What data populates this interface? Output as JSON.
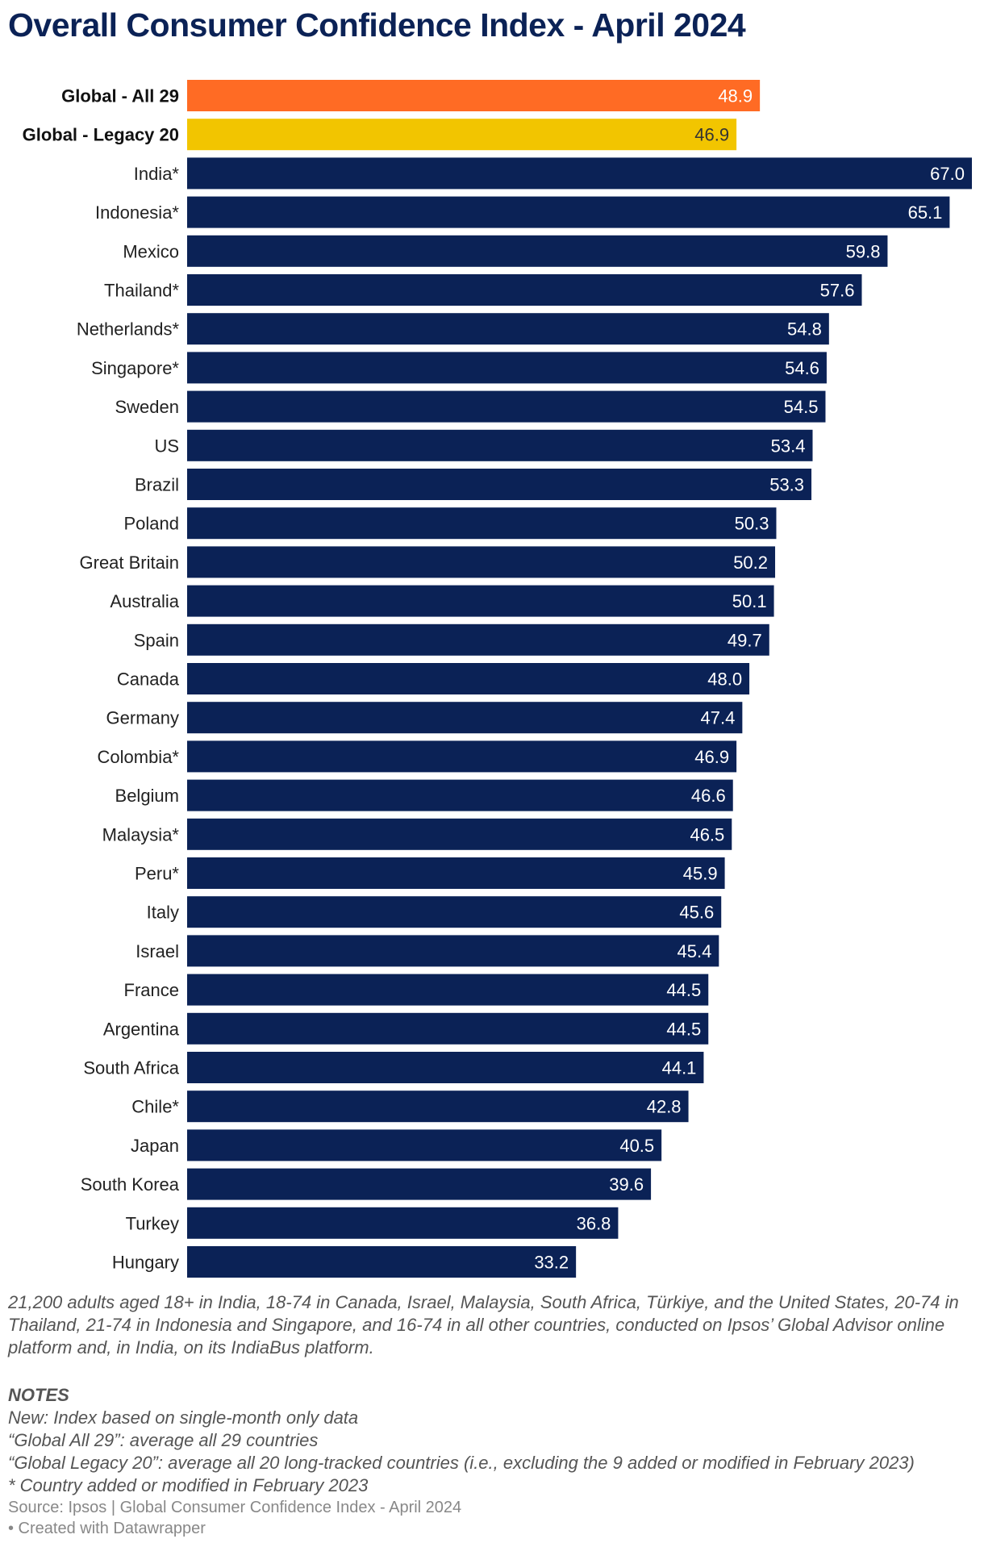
{
  "title": "Overall Consumer Confidence Index - April 2024",
  "chart_data": {
    "type": "bar",
    "orientation": "horizontal",
    "title": "Overall Consumer Confidence Index - April 2024",
    "categories": [
      "Global - All 29",
      "Global - Legacy 20",
      "India*",
      "Indonesia*",
      "Mexico",
      "Thailand*",
      "Netherlands*",
      "Singapore*",
      "Sweden",
      "US",
      "Brazil",
      "Poland",
      "Great Britain",
      "Australia",
      "Spain",
      "Canada",
      "Germany",
      "Colombia*",
      "Belgium",
      "Malaysia*",
      "Peru*",
      "Italy",
      "Israel",
      "France",
      "Argentina",
      "South Africa",
      "Chile*",
      "Japan",
      "South Korea",
      "Turkey",
      "Hungary"
    ],
    "values": [
      48.9,
      46.9,
      67.0,
      65.1,
      59.8,
      57.6,
      54.8,
      54.6,
      54.5,
      53.4,
      53.3,
      50.3,
      50.2,
      50.1,
      49.7,
      48.0,
      47.4,
      46.9,
      46.6,
      46.5,
      45.9,
      45.6,
      45.4,
      44.5,
      44.5,
      44.1,
      42.8,
      40.5,
      39.6,
      36.8,
      33.2
    ],
    "value_labels": [
      "48.9",
      "46.9",
      "67.0",
      "65.1",
      "59.8",
      "57.6",
      "54.8",
      "54.6",
      "54.5",
      "53.4",
      "53.3",
      "50.3",
      "50.2",
      "50.1",
      "49.7",
      "48.0",
      "47.4",
      "46.9",
      "46.6",
      "46.5",
      "45.9",
      "45.6",
      "45.4",
      "44.5",
      "44.5",
      "44.1",
      "42.8",
      "40.5",
      "39.6",
      "36.8",
      "33.2"
    ],
    "highlight_bold": [
      true,
      true,
      false,
      false,
      false,
      false,
      false,
      false,
      false,
      false,
      false,
      false,
      false,
      false,
      false,
      false,
      false,
      false,
      false,
      false,
      false,
      false,
      false,
      false,
      false,
      false,
      false,
      false,
      false,
      false,
      false
    ],
    "bar_colors": [
      "#ff6b24",
      "#f2c500",
      "#0b2256",
      "#0b2256",
      "#0b2256",
      "#0b2256",
      "#0b2256",
      "#0b2256",
      "#0b2256",
      "#0b2256",
      "#0b2256",
      "#0b2256",
      "#0b2256",
      "#0b2256",
      "#0b2256",
      "#0b2256",
      "#0b2256",
      "#0b2256",
      "#0b2256",
      "#0b2256",
      "#0b2256",
      "#0b2256",
      "#0b2256",
      "#0b2256",
      "#0b2256",
      "#0b2256",
      "#0b2256",
      "#0b2256",
      "#0b2256",
      "#0b2256",
      "#0b2256"
    ],
    "label_colors": [
      "#ffffff",
      "#333333",
      "#ffffff",
      "#ffffff",
      "#ffffff",
      "#ffffff",
      "#ffffff",
      "#ffffff",
      "#ffffff",
      "#ffffff",
      "#ffffff",
      "#ffffff",
      "#ffffff",
      "#ffffff",
      "#ffffff",
      "#ffffff",
      "#ffffff",
      "#ffffff",
      "#ffffff",
      "#ffffff",
      "#ffffff",
      "#ffffff",
      "#ffffff",
      "#ffffff",
      "#ffffff",
      "#ffffff",
      "#ffffff",
      "#ffffff",
      "#ffffff",
      "#ffffff",
      "#ffffff"
    ],
    "xlim": [
      0,
      67.0
    ],
    "grid": false,
    "legend": "none",
    "value_labels_position": "inside-end"
  },
  "description": "21,200 adults aged 18+ in India, 18-74 in Canada, Israel, Malaysia, South Africa, Türkiye, and the United States, 20-74 in Thailand, 21-74 in Indonesia and Singapore, and 16-74 in all other countries, conducted on Ipsos’ Global Advisor online platform and, in India, on its IndiaBus platform.",
  "notes": {
    "heading": "NOTES",
    "lines": [
      "New: Index based on single-month only data",
      "“Global All 29”: average all 29 countries",
      "“Global Legacy 20”: average all 20 long-tracked countries (i.e., excluding the 9 added or modified in February 2023)",
      "* Country added or modified in February 2023"
    ]
  },
  "footer": {
    "source": "Source: Ipsos | Global Consumer Confidence Index - April 2024",
    "credit": "• Created with Datawrapper"
  }
}
